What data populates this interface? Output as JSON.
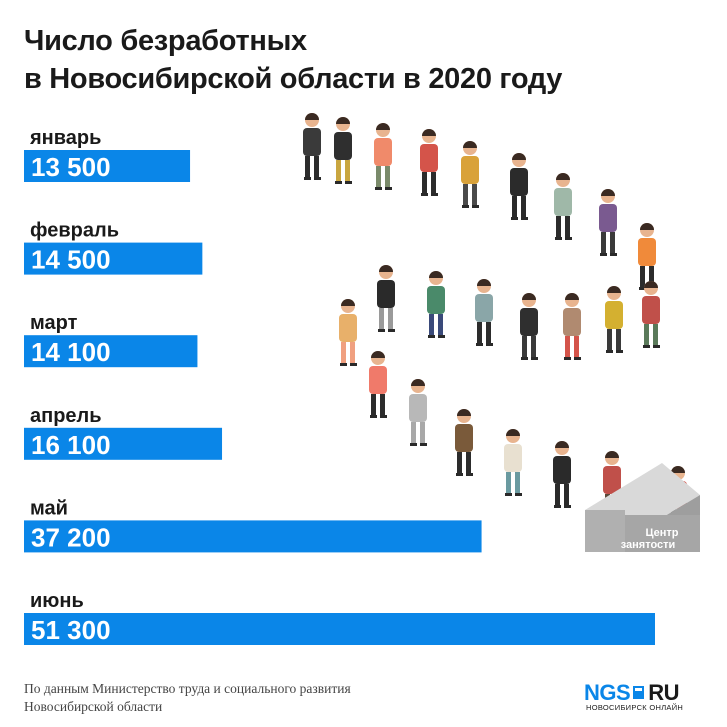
{
  "title_line1": "Число безработных",
  "title_line2": "в Новосибирской области в 2020 году",
  "chart_data": {
    "type": "bar",
    "orientation": "horizontal",
    "categories": [
      "январь",
      "февраль",
      "март",
      "апрель",
      "май",
      "июнь"
    ],
    "values": [
      13500,
      14500,
      14100,
      16100,
      37200,
      51300
    ],
    "value_labels": [
      "13 500",
      "14 500",
      "14 100",
      "16 100",
      "37 200",
      "51 300"
    ],
    "title": "Число безработных в Новосибирской области в 2020 году",
    "xlabel": "",
    "ylabel": "",
    "grid": false,
    "color": "#0a86e8"
  },
  "illustration": {
    "desk_label_line1": "Центр",
    "desk_label_line2": "занятости"
  },
  "footer": {
    "line1": "По данным Министерство труда и социального развития",
    "line2": "Новосибирской области"
  },
  "logo": {
    "brand": "NGS",
    "domain": "RU",
    "subtitle": "НОВОСИБИРСК ОНЛАЙН"
  }
}
